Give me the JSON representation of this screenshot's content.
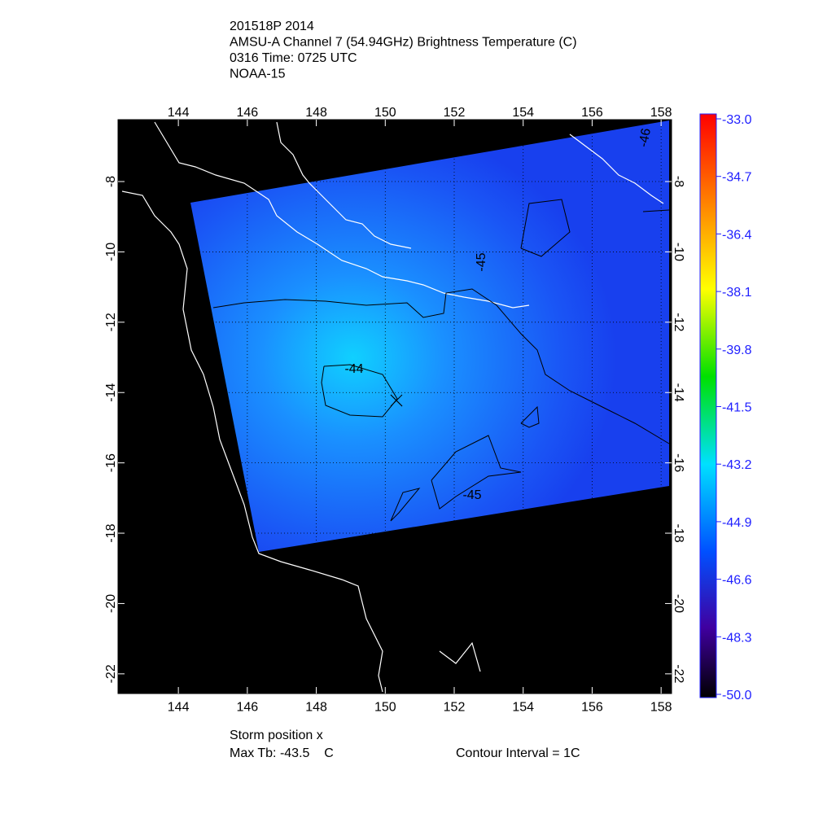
{
  "header": {
    "lines": [
      "201518P 2014",
      "AMSU-A Channel 7 (54.94GHz) Brightness Temperature (C)",
      "0316 Time: 0725 UTC",
      "NOAA-15"
    ]
  },
  "map": {
    "lon_ticks": [
      144,
      146,
      148,
      150,
      152,
      154,
      156,
      158
    ],
    "lat_ticks": [
      -8,
      -10,
      -12,
      -14,
      -16,
      -18,
      -20,
      -22
    ]
  },
  "contours": {
    "labels": [
      "-44",
      "-45",
      "-45",
      "-46"
    ]
  },
  "colorbar": {
    "ticks": [
      {
        "value": -33,
        "label": "-33.0"
      },
      {
        "value": -34.7,
        "label": "-34.7"
      },
      {
        "value": -36.4,
        "label": "-36.4"
      },
      {
        "value": -38.1,
        "label": "-38.1"
      },
      {
        "value": -39.8,
        "label": "-39.8"
      },
      {
        "value": -41.5,
        "label": "-41.5"
      },
      {
        "value": -43.2,
        "label": "-43.2"
      },
      {
        "value": -44.9,
        "label": "-44.9"
      },
      {
        "value": -46.6,
        "label": "-46.6"
      },
      {
        "value": -48.3,
        "label": "-48.3"
      },
      {
        "value": -50,
        "label": "-50.0"
      }
    ]
  },
  "footer": {
    "storm": "Storm position x",
    "max_tb": "Max Tb: -43.5    C",
    "interval": "Contour Interval = 1C"
  }
}
